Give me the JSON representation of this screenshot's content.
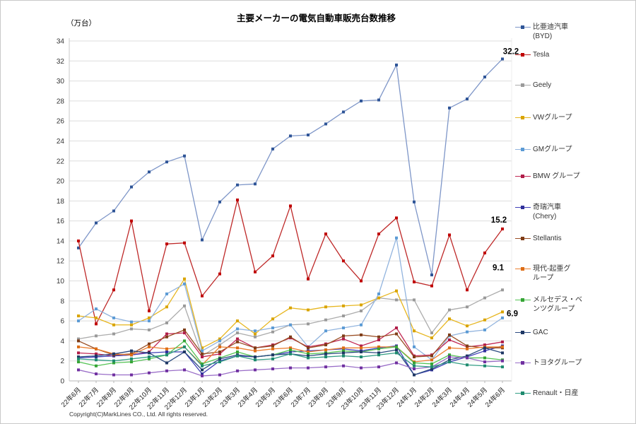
{
  "title": "主要メーカーの電気自動車販売台数推移",
  "y_axis": {
    "unit": "（万台）",
    "min": 0,
    "max": 34,
    "step": 2
  },
  "copyright": "Copyright(C)MarkLines CO., Ltd. All rights reserved.",
  "chart_data": {
    "type": "line",
    "title": "主要メーカーの電気自動車販売台数推移",
    "xlabel": "",
    "ylabel": "（万台）",
    "ylim": [
      0,
      34
    ],
    "ytick_step": 2,
    "grid": true,
    "legend_position": "right",
    "categories": [
      "22年6月",
      "22年7月",
      "22年8月",
      "22年9月",
      "22年10月",
      "22年11月",
      "22年12月",
      "23年1月",
      "23年2月",
      "23年3月",
      "23年4月",
      "23年5月",
      "23年6月",
      "23年7月",
      "23年8月",
      "23年9月",
      "23年10月",
      "23年11月",
      "23年12月",
      "24年1月",
      "24年2月",
      "24年3月",
      "24年4月",
      "24年5月",
      "24年6月"
    ],
    "series": [
      {
        "name": "比亜迪汽車（BYD）",
        "legend_label": "比亜迪汽車\n(BYD)",
        "color": "#7E96C8",
        "marker_color": "#2F5597",
        "end_label": "32.2",
        "values": [
          13.3,
          15.8,
          17.0,
          19.4,
          20.9,
          21.9,
          22.5,
          14.1,
          17.9,
          19.6,
          19.7,
          23.2,
          24.5,
          24.6,
          25.7,
          26.9,
          28.0,
          28.1,
          31.6,
          17.9,
          10.6,
          27.3,
          28.2,
          30.4,
          32.2
        ]
      },
      {
        "name": "Tesla",
        "legend_label": "Tesla",
        "color": "#BE2828",
        "marker_color": "#C00000",
        "end_label": "15.2",
        "values": [
          14.0,
          5.7,
          9.1,
          16.0,
          7.0,
          13.7,
          13.8,
          8.5,
          10.7,
          18.1,
          10.9,
          12.5,
          17.5,
          10.2,
          14.7,
          12.0,
          10.0,
          14.7,
          16.3,
          9.9,
          9.5,
          14.6,
          9.1,
          12.8,
          15.2
        ]
      },
      {
        "name": "Geely",
        "legend_label": "Geely",
        "color": "#ACACAC",
        "marker_color": "#9A9A9A",
        "end_label": "9.1",
        "values": [
          4.2,
          4.5,
          4.7,
          5.2,
          5.1,
          5.8,
          7.5,
          2.5,
          3.6,
          4.8,
          4.4,
          4.9,
          5.6,
          5.7,
          6.1,
          6.5,
          7.0,
          8.3,
          8.1,
          8.1,
          4.8,
          7.1,
          7.4,
          8.3,
          9.1
        ]
      },
      {
        "name": "VWグループ",
        "legend_label": "VWグループ",
        "color": "#E7B61F",
        "marker_color": "#D9A400",
        "end_label": "6.9",
        "values": [
          6.5,
          6.3,
          5.6,
          5.6,
          6.3,
          7.4,
          10.2,
          3.3,
          4.2,
          6.0,
          4.7,
          6.2,
          7.3,
          7.1,
          7.4,
          7.5,
          7.6,
          8.3,
          9.0,
          5.0,
          4.3,
          6.2,
          5.5,
          6.1,
          6.9
        ]
      },
      {
        "name": "GMグループ",
        "legend_label": "GMグループ",
        "color": "#92B4DE",
        "marker_color": "#5B9BD5",
        "end_label": "",
        "values": [
          6.0,
          7.2,
          6.3,
          5.9,
          6.0,
          8.7,
          9.7,
          3.0,
          4.0,
          5.2,
          5.0,
          5.3,
          5.6,
          3.4,
          5.0,
          5.3,
          5.6,
          8.7,
          14.3,
          3.4,
          2.1,
          4.5,
          4.9,
          5.1,
          6.3
        ]
      },
      {
        "name": "BMWグループ",
        "legend_label": "BMW グループ",
        "color": "#C22A55",
        "marker_color": "#B01E49",
        "end_label": "",
        "values": [
          2.8,
          2.7,
          2.5,
          2.6,
          2.9,
          4.7,
          4.8,
          2.4,
          2.7,
          4.2,
          3.3,
          3.6,
          4.3,
          3.4,
          3.7,
          4.2,
          3.5,
          4.1,
          5.3,
          2.5,
          2.6,
          4.1,
          3.4,
          3.6,
          3.9
        ]
      },
      {
        "name": "奇瑞汽車（Chery）",
        "legend_label": "奇瑞汽車\n(Chery)",
        "color": "#4040B8",
        "marker_color": "#30309A",
        "end_label": "",
        "values": [
          2.3,
          2.4,
          2.5,
          2.6,
          2.8,
          2.9,
          2.9,
          0.7,
          2.0,
          2.5,
          2.4,
          2.6,
          2.9,
          3.0,
          3.1,
          3.2,
          3.0,
          3.3,
          3.5,
          0.6,
          1.1,
          1.9,
          2.4,
          3.0,
          3.5
        ]
      },
      {
        "name": "Stellantis",
        "legend_label": "Stellantis",
        "color": "#9A4E24",
        "marker_color": "#7F3D18",
        "end_label": "",
        "values": [
          4.0,
          3.2,
          2.6,
          2.7,
          3.7,
          4.4,
          5.1,
          2.7,
          2.9,
          3.9,
          3.3,
          3.5,
          4.4,
          3.3,
          3.6,
          4.5,
          4.6,
          4.4,
          4.7,
          2.4,
          2.5,
          4.6,
          3.5,
          3.3,
          3.3
        ]
      },
      {
        "name": "現代-起亜グループ",
        "legend_label": "現代-起亜グ\nループ",
        "color": "#EC8030",
        "marker_color": "#DD6D15",
        "end_label": "",
        "values": [
          3.4,
          3.2,
          2.7,
          2.6,
          3.4,
          3.2,
          3.4,
          1.6,
          3.4,
          3.3,
          3.0,
          3.2,
          3.3,
          2.9,
          3.1,
          3.3,
          3.3,
          3.4,
          3.4,
          1.9,
          2.1,
          3.3,
          3.2,
          3.4,
          3.4
        ]
      },
      {
        "name": "メルセデス・ベンツグループ",
        "legend_label": "メルセデス・ベ\nンツグループ",
        "color": "#55C455",
        "marker_color": "#35A435",
        "end_label": "",
        "values": [
          1.9,
          1.5,
          1.8,
          1.9,
          2.2,
          2.6,
          4.0,
          1.7,
          2.3,
          2.9,
          2.4,
          2.6,
          3.1,
          2.7,
          2.8,
          3.0,
          2.9,
          3.2,
          3.4,
          1.8,
          1.7,
          2.6,
          2.3,
          2.3,
          2.1
        ]
      },
      {
        "name": "GAC",
        "legend_label": "GAC",
        "color": "#2B4B80",
        "marker_color": "#1F3864",
        "end_label": "",
        "values": [
          2.4,
          2.5,
          2.7,
          3.0,
          2.8,
          1.8,
          2.9,
          1.1,
          2.2,
          2.6,
          2.4,
          2.6,
          2.7,
          2.5,
          2.7,
          2.8,
          2.9,
          2.8,
          3.1,
          0.6,
          1.2,
          2.1,
          2.5,
          3.3,
          2.8
        ]
      },
      {
        "name": "トヨタグループ",
        "legend_label": "トヨタグループ",
        "color": "#9A6EC8",
        "marker_color": "#7030A0",
        "end_label": "",
        "values": [
          1.1,
          0.7,
          0.6,
          0.6,
          0.8,
          1.0,
          1.1,
          0.5,
          0.6,
          1.0,
          1.1,
          1.2,
          1.3,
          1.3,
          1.4,
          1.5,
          1.3,
          1.4,
          1.8,
          1.2,
          1.4,
          2.4,
          2.3,
          1.9,
          2.0
        ]
      },
      {
        "name": "Renault・日産",
        "legend_label": "Renault・日産",
        "color": "#339E85",
        "marker_color": "#1E8A6E",
        "end_label": "",
        "values": [
          2.2,
          2.1,
          2.0,
          2.2,
          2.4,
          2.6,
          3.4,
          1.5,
          1.9,
          2.5,
          2.1,
          2.2,
          2.7,
          2.3,
          2.4,
          2.5,
          2.4,
          2.6,
          2.8,
          1.5,
          1.4,
          1.9,
          1.6,
          1.5,
          1.4
        ]
      }
    ]
  }
}
